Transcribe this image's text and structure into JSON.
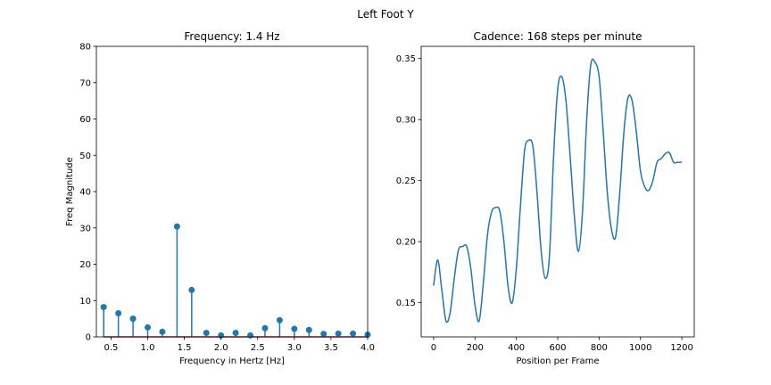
{
  "figure": {
    "suptitle": "Left Foot Y"
  },
  "colors": {
    "series": "#1f77b4",
    "baseline": "#d62728",
    "axis": "#000000"
  },
  "chart_data": [
    {
      "type": "stem",
      "title": "Frequency: 1.4 Hz",
      "xlabel": "Frequency in Hertz [Hz]",
      "ylabel": "Freq Magnitude",
      "xlim": [
        0.3,
        4.0
      ],
      "ylim": [
        0,
        80
      ],
      "xticks": [
        0.5,
        1.0,
        1.5,
        2.0,
        2.5,
        3.0,
        3.5,
        4.0
      ],
      "xtick_labels": [
        "0.5",
        "1.0",
        "1.5",
        "2.0",
        "2.5",
        "3.0",
        "3.5",
        "4.0"
      ],
      "yticks": [
        0,
        10,
        20,
        30,
        40,
        50,
        60,
        70,
        80
      ],
      "ytick_labels": [
        "0",
        "10",
        "20",
        "30",
        "40",
        "50",
        "60",
        "70",
        "80"
      ],
      "grid": false,
      "x": [
        0.4,
        0.6,
        0.8,
        1.0,
        1.2,
        1.4,
        1.6,
        1.8,
        2.0,
        2.2,
        2.4,
        2.6,
        2.8,
        3.0,
        3.2,
        3.4,
        3.6,
        3.8,
        4.0
      ],
      "y": [
        8.2,
        6.5,
        5.0,
        2.6,
        1.4,
        30.4,
        12.9,
        1.1,
        0.4,
        1.1,
        0.4,
        2.4,
        4.6,
        2.2,
        1.9,
        0.8,
        0.9,
        0.9,
        0.6
      ]
    },
    {
      "type": "line",
      "title": "Cadence: 168 steps per minute",
      "xlabel": "Position per Frame",
      "ylabel": "",
      "xlim": [
        -60,
        1260
      ],
      "ylim": [
        0.122,
        0.36
      ],
      "xticks": [
        0,
        200,
        400,
        600,
        800,
        1000,
        1200
      ],
      "xtick_labels": [
        "0",
        "200",
        "400",
        "600",
        "800",
        "1000",
        "1200"
      ],
      "yticks": [
        0.15,
        0.2,
        0.25,
        0.3,
        0.35
      ],
      "ytick_labels": [
        "0.15",
        "0.20",
        "0.25",
        "0.30",
        "0.35"
      ],
      "grid": false,
      "x": [
        0,
        20,
        40,
        60,
        80,
        100,
        120,
        140,
        160,
        180,
        200,
        220,
        240,
        260,
        280,
        300,
        320,
        340,
        360,
        380,
        400,
        420,
        440,
        460,
        480,
        500,
        520,
        540,
        560,
        580,
        600,
        620,
        640,
        660,
        680,
        700,
        720,
        740,
        760,
        780,
        800,
        820,
        840,
        860,
        880,
        900,
        920,
        940,
        960,
        980,
        1000,
        1020,
        1040,
        1060,
        1080,
        1100,
        1120,
        1140,
        1160,
        1180,
        1200
      ],
      "y": [
        0.164,
        0.185,
        0.16,
        0.135,
        0.142,
        0.17,
        0.193,
        0.196,
        0.196,
        0.178,
        0.148,
        0.135,
        0.165,
        0.205,
        0.224,
        0.228,
        0.225,
        0.2,
        0.163,
        0.15,
        0.178,
        0.23,
        0.275,
        0.283,
        0.278,
        0.24,
        0.192,
        0.17,
        0.188,
        0.27,
        0.325,
        0.335,
        0.315,
        0.27,
        0.222,
        0.192,
        0.225,
        0.3,
        0.345,
        0.347,
        0.335,
        0.29,
        0.24,
        0.21,
        0.204,
        0.24,
        0.29,
        0.318,
        0.315,
        0.29,
        0.258,
        0.245,
        0.242,
        0.25,
        0.265,
        0.268,
        0.272,
        0.273,
        0.265,
        0.265,
        0.265
      ]
    }
  ]
}
